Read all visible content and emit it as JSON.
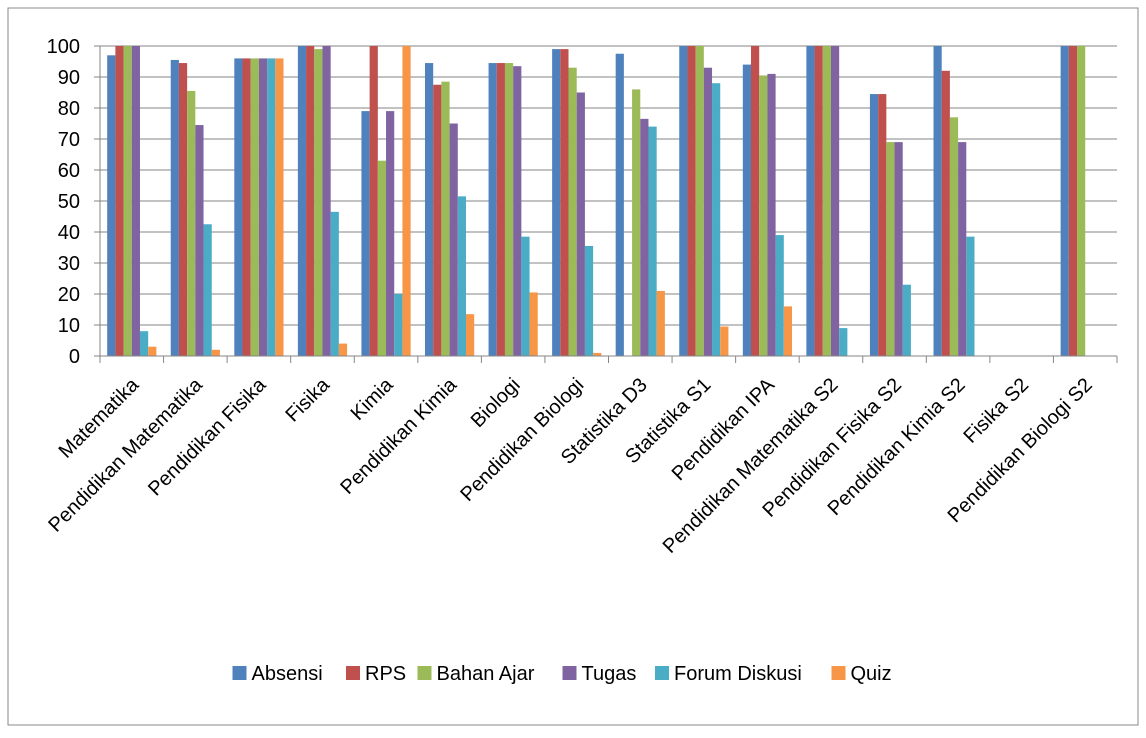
{
  "chart_data": {
    "type": "bar",
    "categories": [
      "Matematika",
      "Pendidikan Matematika",
      "Pendidikan Fisika",
      "Fisika",
      "Kimia",
      "Pendidikan Kimia",
      "Biologi",
      "Pendidikan Biologi",
      "Statistika D3",
      "Statistika S1",
      "Pendidikan IPA",
      "Pendidikan Matematika S2",
      "Pendidikan Fisika S2",
      "Pendidikan Kimia S2",
      "Fisika S2",
      "Pendidikan Biologi S2"
    ],
    "series": [
      {
        "name": "Absensi",
        "color": "#4f81bd",
        "values": [
          97,
          95.5,
          96,
          100,
          79,
          94.5,
          94.5,
          99,
          97.5,
          100,
          94,
          100,
          84.5,
          100,
          0,
          100
        ]
      },
      {
        "name": "RPS",
        "color": "#c0504d",
        "values": [
          100,
          94.5,
          96,
          100,
          100,
          87.5,
          94.5,
          99,
          0,
          100,
          100,
          100,
          84.5,
          92,
          0,
          100
        ]
      },
      {
        "name": "Bahan Ajar",
        "color": "#9bbb59",
        "values": [
          100,
          85.5,
          96,
          99,
          63,
          88.5,
          94.5,
          93,
          86,
          100,
          90.5,
          100,
          69,
          77,
          0,
          100
        ]
      },
      {
        "name": "Tugas",
        "color": "#8064a2",
        "values": [
          100,
          74.5,
          96,
          100,
          79,
          75,
          93.5,
          85,
          76.5,
          93,
          91,
          100,
          69,
          69,
          0,
          0
        ]
      },
      {
        "name": "Forum Diskusi",
        "color": "#4bacc6",
        "values": [
          8,
          42.5,
          96,
          46.5,
          20,
          51.5,
          38.5,
          35.5,
          74,
          88,
          39,
          9,
          23,
          38.5,
          0,
          0
        ]
      },
      {
        "name": "Quiz",
        "color": "#f79646",
        "values": [
          3,
          2,
          96,
          4,
          100,
          13.5,
          20.5,
          1,
          21,
          9.5,
          16,
          0,
          0,
          0,
          0,
          0
        ]
      }
    ],
    "ylim": [
      0,
      100
    ],
    "yticks": [
      0,
      10,
      20,
      30,
      40,
      50,
      60,
      70,
      80,
      90,
      100
    ],
    "grid": true,
    "legend": "bottom"
  }
}
